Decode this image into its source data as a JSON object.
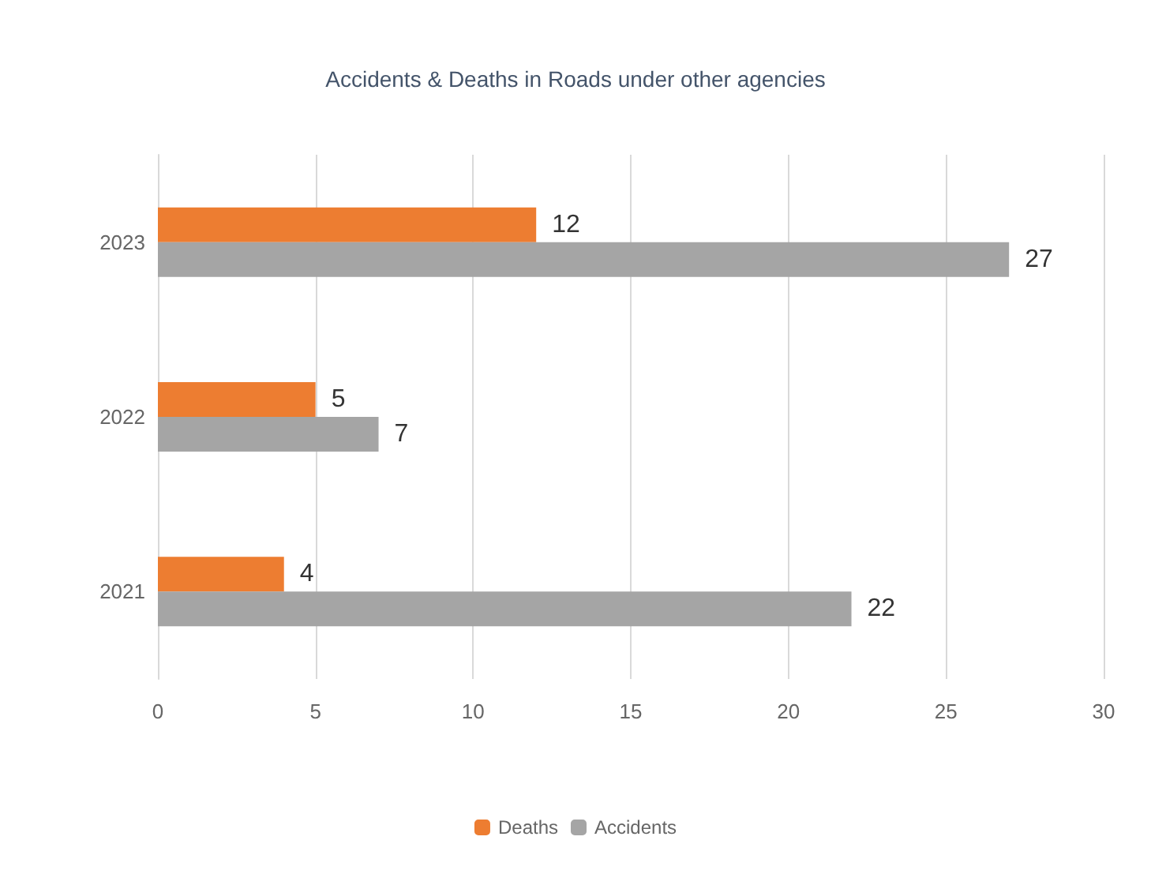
{
  "chart_data": {
    "type": "bar",
    "orientation": "horizontal",
    "title": "Accidents & Deaths in Roads under other agencies",
    "categories": [
      "2023",
      "2022",
      "2021"
    ],
    "series": [
      {
        "name": "Deaths",
        "color": "#ed7d31",
        "values": [
          12,
          5,
          4
        ]
      },
      {
        "name": "Accidents",
        "color": "#a5a5a5",
        "values": [
          27,
          7,
          22
        ]
      }
    ],
    "xlim": [
      0,
      30
    ],
    "xticks": [
      0,
      5,
      10,
      15,
      20,
      25,
      30
    ],
    "grid": "x",
    "legend": "bottom",
    "data_labels": true
  }
}
